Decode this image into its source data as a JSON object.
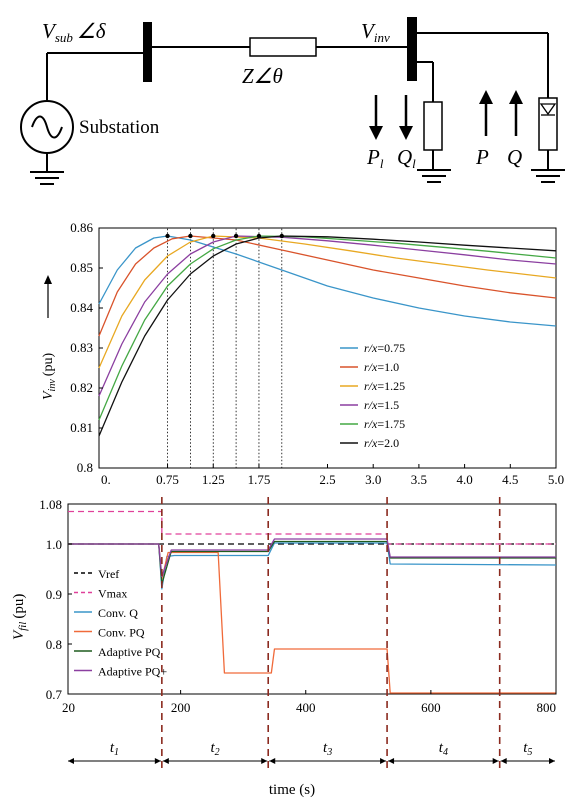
{
  "circuit": {
    "v_sub": "V",
    "v_sub_sub": "sub",
    "v_sub_angle": "∠δ",
    "impedance": "Z∠θ",
    "v_inv": "V",
    "v_inv_sub": "inv",
    "source_label": "Substation",
    "p_load": "P",
    "p_load_sub": "l",
    "q_load": "Q",
    "q_load_sub": "l",
    "p_inv": "P",
    "q_inv": "Q"
  },
  "chart_data": [
    {
      "type": "line",
      "title": "",
      "xlabel": "",
      "ylabel": "V_inv (pu)",
      "ylabel_main": "V",
      "ylabel_sub": "inv",
      "ylabel_unit": "(pu)",
      "xlim": [
        0,
        5.0
      ],
      "ylim": [
        0.8,
        0.86
      ],
      "x_ticks": [
        "0.",
        "0.75",
        "1.25",
        "1.75",
        "2.5",
        "3.0",
        "3.5",
        "4.0",
        "4.5",
        "5.0"
      ],
      "y_ticks": [
        "0.8",
        "0.81",
        "0.82",
        "0.83",
        "0.84",
        "0.85",
        "0.86"
      ],
      "legend_position": "bottom-right",
      "peak_markers_x": [
        0.75,
        1.0,
        1.25,
        1.5,
        1.75,
        2.0
      ],
      "series": [
        {
          "name": "r/x=0.75",
          "legend_r": "r/x",
          "legend_val": "=0.75",
          "color": "#3a95c9",
          "x": [
            0,
            0.2,
            0.4,
            0.6,
            0.75,
            1.0,
            1.5,
            2.0,
            2.5,
            3.0,
            3.5,
            4.0,
            4.5,
            5.0
          ],
          "values": [
            0.841,
            0.8495,
            0.855,
            0.8575,
            0.858,
            0.857,
            0.8535,
            0.8495,
            0.8455,
            0.8425,
            0.84,
            0.838,
            0.8365,
            0.8355
          ]
        },
        {
          "name": "r/x=1.0",
          "legend_r": "r/x",
          "legend_val": "=1.0",
          "color": "#d9532b",
          "x": [
            0,
            0.2,
            0.4,
            0.6,
            0.8,
            1.0,
            1.5,
            2.0,
            2.5,
            3.0,
            3.5,
            4.0,
            4.5,
            5.0
          ],
          "values": [
            0.833,
            0.844,
            0.851,
            0.855,
            0.8573,
            0.858,
            0.857,
            0.8545,
            0.852,
            0.8495,
            0.8475,
            0.8455,
            0.8438,
            0.8425
          ]
        },
        {
          "name": "r/x=1.25",
          "legend_r": "r/x",
          "legend_val": "=1.25",
          "color": "#e8a822",
          "x": [
            0,
            0.25,
            0.5,
            0.75,
            1.0,
            1.25,
            1.75,
            2.25,
            2.75,
            3.25,
            3.75,
            4.25,
            5.0
          ],
          "values": [
            0.825,
            0.838,
            0.847,
            0.853,
            0.8565,
            0.858,
            0.8575,
            0.856,
            0.8543,
            0.8525,
            0.851,
            0.8495,
            0.8475
          ]
        },
        {
          "name": "r/x=1.5",
          "legend_r": "r/x",
          "legend_val": "=1.5",
          "color": "#8b3fa0",
          "x": [
            0,
            0.25,
            0.5,
            0.75,
            1.0,
            1.25,
            1.5,
            2.0,
            2.5,
            3.0,
            3.5,
            4.0,
            4.5,
            5.0
          ],
          "values": [
            0.818,
            0.831,
            0.8415,
            0.8485,
            0.8535,
            0.8565,
            0.858,
            0.8577,
            0.8568,
            0.8557,
            0.8545,
            0.8533,
            0.852,
            0.851
          ]
        },
        {
          "name": "r/x=1.75",
          "legend_r": "r/x",
          "legend_val": "=1.75",
          "color": "#44a844",
          "x": [
            0,
            0.25,
            0.5,
            0.75,
            1.0,
            1.25,
            1.5,
            1.75,
            2.25,
            2.75,
            3.25,
            3.75,
            4.25,
            5.0
          ],
          "values": [
            0.812,
            0.8255,
            0.837,
            0.8455,
            0.851,
            0.8548,
            0.857,
            0.858,
            0.8578,
            0.857,
            0.8562,
            0.8552,
            0.8542,
            0.8525
          ]
        },
        {
          "name": "r/x=2.0",
          "legend_r": "r/x",
          "legend_val": "=2.0",
          "color": "#111111",
          "x": [
            0,
            0.25,
            0.5,
            0.75,
            1.0,
            1.25,
            1.5,
            1.75,
            2.0,
            2.5,
            3.0,
            3.5,
            4.0,
            4.5,
            5.0
          ],
          "values": [
            0.808,
            0.8215,
            0.833,
            0.842,
            0.8485,
            0.853,
            0.856,
            0.8575,
            0.858,
            0.8578,
            0.8572,
            0.8565,
            0.8557,
            0.855,
            0.8543
          ]
        }
      ]
    },
    {
      "type": "line",
      "title": "",
      "xlabel": "time (s)",
      "ylabel": "V_fil (pu)",
      "ylabel_main": "V",
      "ylabel_sub": "fil",
      "ylabel_unit": "(pu)",
      "xlim": [
        20,
        800
      ],
      "ylim": [
        0.7,
        1.08
      ],
      "x_ticks": [
        "20",
        "200",
        "400",
        "600",
        "800"
      ],
      "y_ticks": [
        "0.7",
        "0.8",
        "0.9",
        "1.0",
        "1.08"
      ],
      "legend_position": "left",
      "event_lines_x": [
        170,
        340,
        530,
        710
      ],
      "periods": [
        {
          "main": "t",
          "sub": "1"
        },
        {
          "main": "t",
          "sub": "2"
        },
        {
          "main": "t",
          "sub": "3"
        },
        {
          "main": "t",
          "sub": "4"
        },
        {
          "main": "t",
          "sub": "5"
        }
      ],
      "series": [
        {
          "name": "Vref",
          "color": "#000000",
          "dash": "6,4",
          "x": [
            20,
            800
          ],
          "values": [
            1.0,
            1.0
          ]
        },
        {
          "name": "Vmax",
          "color": "#e0409a",
          "dash": "6,4",
          "x": [
            20,
            170,
            170,
            350,
            350,
            530,
            530,
            800
          ],
          "values": [
            1.065,
            1.065,
            1.02,
            1.02,
            1.02,
            1.02,
            1.0,
            1.0
          ]
        },
        {
          "name": "Conv. Q",
          "color": "#3a95c9",
          "x": [
            20,
            165,
            170,
            178,
            190,
            340,
            350,
            530,
            535,
            800
          ],
          "values": [
            1.0,
            1.0,
            0.91,
            0.975,
            0.977,
            0.977,
            1.002,
            1.002,
            0.96,
            0.958
          ]
        },
        {
          "name": "Conv. PQ",
          "color": "#f06a3a",
          "x": [
            20,
            165,
            170,
            180,
            260,
            270,
            345,
            350,
            530,
            535,
            800
          ],
          "values": [
            1.0,
            1.0,
            0.93,
            0.983,
            0.983,
            0.742,
            0.742,
            0.79,
            0.79,
            0.702,
            0.702
          ]
        },
        {
          "name": "Adaptive PQ",
          "color": "#1f5c1f",
          "x": [
            20,
            165,
            170,
            185,
            340,
            350,
            530,
            535,
            800
          ],
          "values": [
            1.0,
            1.0,
            0.92,
            0.985,
            0.985,
            1.005,
            1.005,
            0.972,
            0.972
          ]
        },
        {
          "name": "Adaptive PQ+",
          "color": "#8b3fa0",
          "x": [
            20,
            165,
            170,
            185,
            340,
            350,
            530,
            535,
            800
          ],
          "values": [
            1.0,
            1.0,
            0.935,
            0.988,
            0.988,
            1.01,
            1.01,
            0.974,
            0.974
          ]
        }
      ]
    }
  ]
}
